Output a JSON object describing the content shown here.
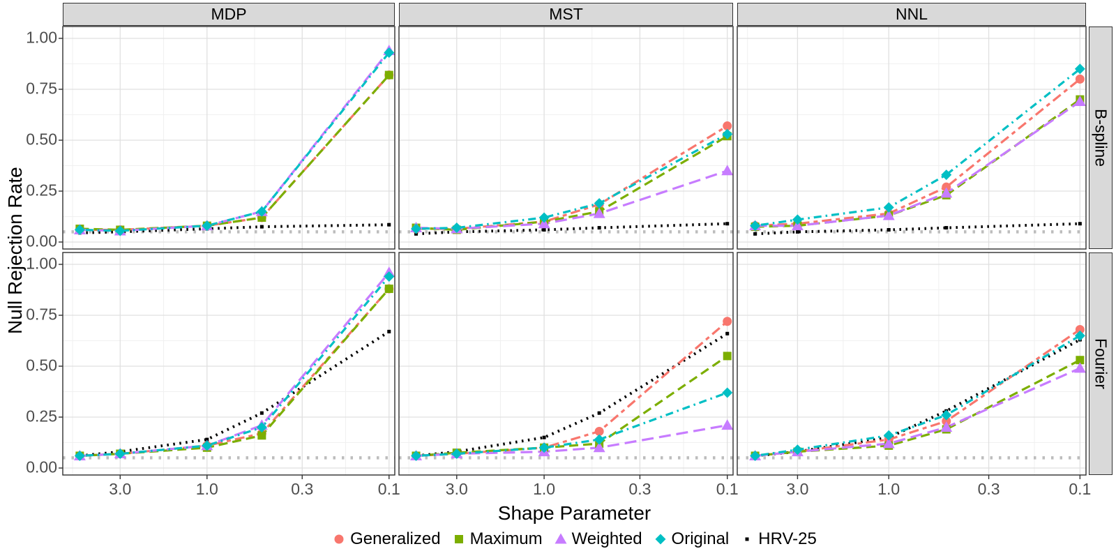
{
  "chart": {
    "y_axis_title": "Null Rejection Rate",
    "x_axis_title": "Shape Parameter",
    "col_facets": [
      "MDP",
      "MST",
      "NNL"
    ],
    "row_facets": [
      "B-spline",
      "Fourier"
    ],
    "x_tick_labels": [
      "3.0",
      "1.0",
      "0.3",
      "0.1"
    ],
    "x_tick_values": [
      3,
      1,
      0.3,
      0.1
    ],
    "x_minor_values": [
      5.477,
      1.732,
      0.5477,
      0.1732
    ],
    "y_tick_labels": [
      "0.00",
      "0.25",
      "0.50",
      "0.75",
      "1.00"
    ],
    "y_tick_values": [
      0,
      0.25,
      0.5,
      0.75,
      1
    ],
    "y_minor_values": [
      0.125,
      0.375,
      0.625,
      0.875
    ],
    "reference_line_y": 0.05,
    "reference_line_color": "#BDBDBD",
    "panel_background": "#FFFFFF",
    "strip_background": "#D9D9D9",
    "grid_major_color": "#E0E0E0",
    "grid_minor_color": "#F0F0F0",
    "panel_border_color": "#2f2f2f",
    "tick_label_color": "#4D4D4D"
  },
  "legend": {
    "items": [
      {
        "label": "Generalized",
        "color": "#F8766D",
        "shape": "circle",
        "dash": "14,6,6,6"
      },
      {
        "label": "Maximum",
        "color": "#7CAE00",
        "shape": "square",
        "dash": "13,7"
      },
      {
        "label": "Weighted",
        "color": "#C77CFF",
        "shape": "triangle",
        "dash": "17,8"
      },
      {
        "label": "Original",
        "color": "#00BFC4",
        "shape": "diamond",
        "dash": "2.5,6,11,6"
      },
      {
        "label": "HRV-25",
        "color": "#000000",
        "shape": "dot",
        "dash": "2.5,6.5"
      }
    ]
  },
  "chart_data": {
    "type": "line",
    "title": "",
    "xlabel": "Shape Parameter",
    "ylabel": "Null Rejection Rate",
    "x": [
      5,
      3,
      1,
      0.5,
      0.1
    ],
    "x_scale": "log10-reversed",
    "x_domain": [
      6.2,
      0.093
    ],
    "ylim": [
      0,
      1
    ],
    "grid": true,
    "legend_position": "bottom",
    "facets": [
      {
        "row": "B-spline",
        "col": "MDP",
        "series": [
          {
            "name": "Generalized",
            "values": [
              0.06,
              0.06,
              0.08,
              0.12,
              0.82
            ]
          },
          {
            "name": "Maximum",
            "values": [
              0.065,
              0.06,
              0.08,
              0.12,
              0.82
            ]
          },
          {
            "name": "Weighted",
            "values": [
              0.06,
              0.055,
              0.08,
              0.15,
              0.94
            ]
          },
          {
            "name": "Original",
            "values": [
              0.06,
              0.055,
              0.08,
              0.15,
              0.93
            ]
          },
          {
            "name": "HRV-25",
            "values": [
              0.045,
              0.05,
              0.065,
              0.075,
              0.085
            ]
          }
        ]
      },
      {
        "row": "B-spline",
        "col": "MST",
        "series": [
          {
            "name": "Generalized",
            "values": [
              0.065,
              0.065,
              0.1,
              0.185,
              0.57
            ]
          },
          {
            "name": "Maximum",
            "values": [
              0.07,
              0.06,
              0.1,
              0.15,
              0.52
            ]
          },
          {
            "name": "Weighted",
            "values": [
              0.07,
              0.065,
              0.09,
              0.14,
              0.35
            ]
          },
          {
            "name": "Original",
            "values": [
              0.065,
              0.07,
              0.12,
              0.19,
              0.53
            ]
          },
          {
            "name": "HRV-25",
            "values": [
              0.04,
              0.05,
              0.06,
              0.07,
              0.09
            ]
          }
        ]
      },
      {
        "row": "B-spline",
        "col": "NNL",
        "series": [
          {
            "name": "Generalized",
            "values": [
              0.08,
              0.09,
              0.14,
              0.27,
              0.8
            ]
          },
          {
            "name": "Maximum",
            "values": [
              0.075,
              0.08,
              0.13,
              0.23,
              0.7
            ]
          },
          {
            "name": "Weighted",
            "values": [
              0.08,
              0.08,
              0.13,
              0.24,
              0.69
            ]
          },
          {
            "name": "Original",
            "values": [
              0.08,
              0.11,
              0.17,
              0.33,
              0.85
            ]
          },
          {
            "name": "HRV-25",
            "values": [
              0.04,
              0.05,
              0.06,
              0.07,
              0.09
            ]
          }
        ]
      },
      {
        "row": "Fourier",
        "col": "MDP",
        "series": [
          {
            "name": "Generalized",
            "values": [
              0.06,
              0.07,
              0.11,
              0.17,
              0.88
            ]
          },
          {
            "name": "Maximum",
            "values": [
              0.06,
              0.07,
              0.1,
              0.16,
              0.88
            ]
          },
          {
            "name": "Weighted",
            "values": [
              0.06,
              0.07,
              0.11,
              0.21,
              0.96
            ]
          },
          {
            "name": "Original",
            "values": [
              0.06,
              0.07,
              0.11,
              0.2,
              0.94
            ]
          },
          {
            "name": "HRV-25",
            "values": [
              0.06,
              0.08,
              0.14,
              0.27,
              0.67
            ]
          }
        ]
      },
      {
        "row": "Fourier",
        "col": "MST",
        "series": [
          {
            "name": "Generalized",
            "values": [
              0.06,
              0.07,
              0.1,
              0.18,
              0.72
            ]
          },
          {
            "name": "Maximum",
            "values": [
              0.06,
              0.075,
              0.1,
              0.12,
              0.55
            ]
          },
          {
            "name": "Weighted",
            "values": [
              0.06,
              0.07,
              0.08,
              0.1,
              0.21
            ]
          },
          {
            "name": "Original",
            "values": [
              0.06,
              0.07,
              0.1,
              0.14,
              0.37
            ]
          },
          {
            "name": "HRV-25",
            "values": [
              0.06,
              0.08,
              0.15,
              0.27,
              0.66
            ]
          }
        ]
      },
      {
        "row": "Fourier",
        "col": "NNL",
        "series": [
          {
            "name": "Generalized",
            "values": [
              0.06,
              0.08,
              0.14,
              0.23,
              0.68
            ]
          },
          {
            "name": "Maximum",
            "values": [
              0.06,
              0.08,
              0.11,
              0.19,
              0.53
            ]
          },
          {
            "name": "Weighted",
            "values": [
              0.06,
              0.08,
              0.12,
              0.2,
              0.49
            ]
          },
          {
            "name": "Original",
            "values": [
              0.06,
              0.09,
              0.16,
              0.26,
              0.65
            ]
          },
          {
            "name": "HRV-25",
            "values": [
              0.06,
              0.08,
              0.15,
              0.28,
              0.63
            ]
          }
        ]
      }
    ]
  }
}
